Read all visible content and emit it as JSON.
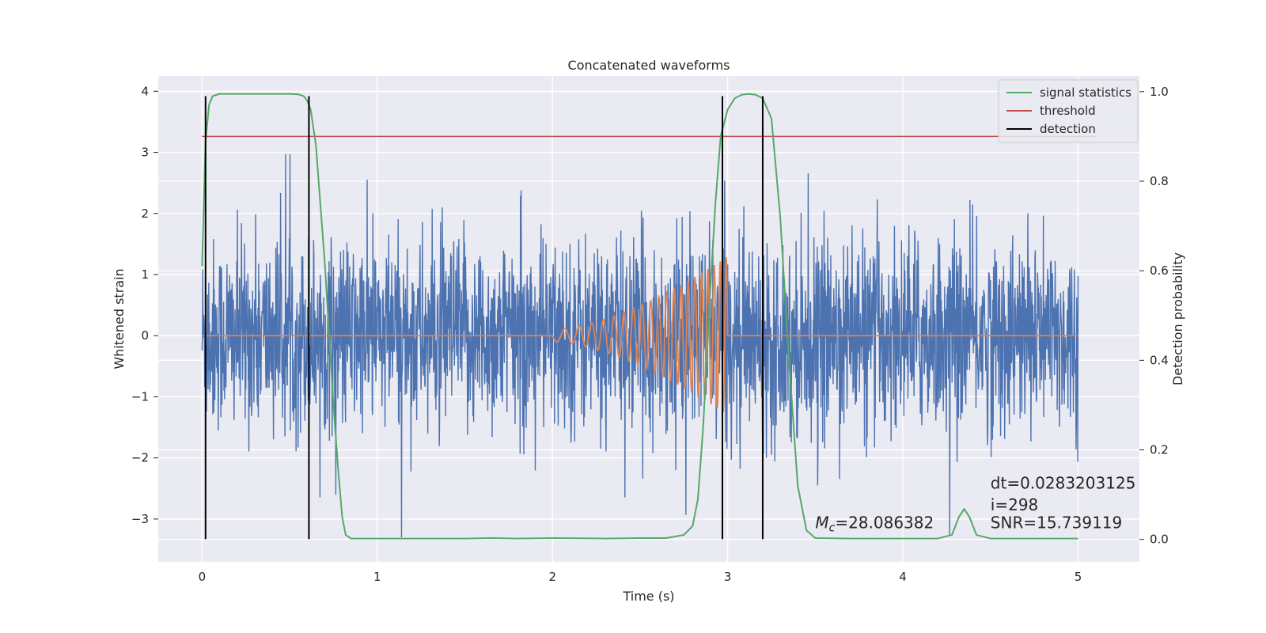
{
  "chart_data": {
    "type": "line",
    "title": "Concatenated waveforms",
    "xlabel": "Time (s)",
    "ylabel": "Whitened strain",
    "y2label": "Detection probability",
    "xlim": [
      -0.25,
      5.35
    ],
    "ylim": [
      -3.7,
      4.25
    ],
    "y2lim": [
      -0.05,
      1.035
    ],
    "xticks": [
      0,
      1,
      2,
      3,
      4,
      5
    ],
    "yticks": [
      -3,
      -2,
      -1,
      0,
      1,
      2,
      3,
      4
    ],
    "y2ticks": [
      0.0,
      0.2,
      0.4,
      0.6,
      0.8,
      1.0
    ],
    "grid": true,
    "legend_position": "top-right",
    "series": [
      {
        "name": "signal statistics",
        "color": "#55a868",
        "axis": "right",
        "x": [
          0.0,
          0.02,
          0.04,
          0.06,
          0.1,
          0.2,
          0.3,
          0.4,
          0.5,
          0.55,
          0.58,
          0.6,
          0.62,
          0.65,
          0.7,
          0.75,
          0.78,
          0.8,
          0.82,
          0.85,
          1.0,
          1.5,
          1.65,
          1.8,
          2.0,
          2.3,
          2.5,
          2.65,
          2.75,
          2.8,
          2.83,
          2.86,
          2.9,
          2.93,
          2.96,
          3.0,
          3.04,
          3.08,
          3.12,
          3.16,
          3.2,
          3.25,
          3.3,
          3.35,
          3.4,
          3.45,
          3.5,
          3.7,
          4.2,
          4.28,
          4.32,
          4.35,
          4.38,
          4.42,
          4.5,
          4.7,
          5.0
        ],
        "y": [
          0.61,
          0.89,
          0.97,
          0.99,
          0.995,
          0.995,
          0.995,
          0.995,
          0.995,
          0.994,
          0.99,
          0.98,
          0.96,
          0.88,
          0.62,
          0.3,
          0.14,
          0.05,
          0.01,
          0.002,
          0.002,
          0.002,
          0.003,
          0.002,
          0.003,
          0.002,
          0.003,
          0.003,
          0.01,
          0.03,
          0.09,
          0.25,
          0.55,
          0.75,
          0.9,
          0.96,
          0.985,
          0.993,
          0.995,
          0.993,
          0.985,
          0.94,
          0.72,
          0.4,
          0.12,
          0.02,
          0.003,
          0.002,
          0.002,
          0.01,
          0.05,
          0.068,
          0.05,
          0.01,
          0.002,
          0.002,
          0.002
        ]
      },
      {
        "name": "threshold",
        "color": "#c44e52",
        "axis": "right",
        "x": [
          0.0,
          5.1
        ],
        "y": [
          0.9,
          0.9
        ]
      },
      {
        "name": "detection",
        "color": "#000000",
        "axis": "left",
        "x": [
          0.02,
          0.61,
          2.97,
          3.2
        ],
        "ymin": -3.33,
        "ymax": 3.92
      },
      {
        "name": "",
        "color": "#4c72b0",
        "axis": "left",
        "kind": "noise",
        "x_range": [
          0.0,
          5.0
        ],
        "typical_range": [
          -1.4,
          1.4
        ],
        "max": 3.9,
        "min": -3.3
      },
      {
        "name": "",
        "color": "#dd8452",
        "axis": "left",
        "kind": "chirp",
        "x_range": [
          0.0,
          5.0
        ],
        "chirp_start": 2.0,
        "chirp_end": 3.0,
        "amplitude_start": 0.1,
        "amplitude_end": 1.3
      }
    ],
    "annotations": [
      {
        "text": "dt=0.0283203125",
        "x": 4.5,
        "y": -2.5
      },
      {
        "text": " i=298",
        "x": 4.5,
        "y": -2.86
      },
      {
        "text_prefix": "M",
        "text_sub": "c",
        "text_rest": "=28.086382",
        "x": 3.5,
        "y": -3.15
      },
      {
        "text": "SNR=15.739119",
        "x": 4.5,
        "y": -3.15
      }
    ]
  }
}
